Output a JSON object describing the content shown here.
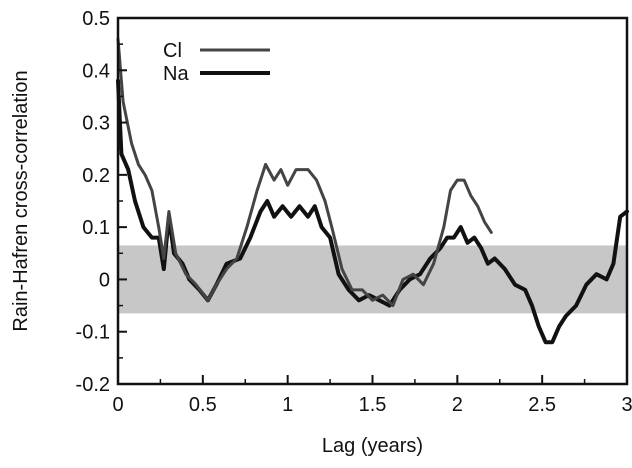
{
  "chart_data": {
    "type": "line",
    "title": "",
    "xlabel": "Lag (years)",
    "ylabel": "Rain-Hafren cross-correlation",
    "xlim": [
      0,
      3
    ],
    "ylim": [
      -0.2,
      0.5
    ],
    "x_ticks": [
      0,
      0.5,
      1,
      1.5,
      2,
      2.5,
      3
    ],
    "x_tick_labels": [
      "0",
      "0.5",
      "1",
      "1.5",
      "2",
      "2.5",
      "3"
    ],
    "y_ticks": [
      -0.2,
      -0.1,
      0,
      0.1,
      0.2,
      0.3,
      0.4,
      0.5
    ],
    "y_tick_labels": [
      "-0.2",
      "-0.1",
      "0",
      "0.1",
      "0.2",
      "0.3",
      "0.4",
      "0.5"
    ],
    "grid": false,
    "legend_position": "top-left",
    "confidence_band": {
      "lower": -0.065,
      "upper": 0.065,
      "color": "#bdbdbd"
    },
    "series": [
      {
        "name": "Cl",
        "color": "#444444",
        "points": [
          [
            0,
            0.46
          ],
          [
            0.03,
            0.34
          ],
          [
            0.08,
            0.26
          ],
          [
            0.12,
            0.22
          ],
          [
            0.16,
            0.2
          ],
          [
            0.2,
            0.17
          ],
          [
            0.24,
            0.1
          ],
          [
            0.27,
            0.04
          ],
          [
            0.3,
            0.13
          ],
          [
            0.34,
            0.05
          ],
          [
            0.4,
            0.01
          ],
          [
            0.46,
            -0.01
          ],
          [
            0.53,
            -0.04
          ],
          [
            0.58,
            -0.01
          ],
          [
            0.64,
            0.02
          ],
          [
            0.7,
            0.04
          ],
          [
            0.76,
            0.1
          ],
          [
            0.82,
            0.17
          ],
          [
            0.87,
            0.22
          ],
          [
            0.92,
            0.19
          ],
          [
            0.96,
            0.21
          ],
          [
            1.0,
            0.18
          ],
          [
            1.05,
            0.21
          ],
          [
            1.12,
            0.21
          ],
          [
            1.17,
            0.19
          ],
          [
            1.22,
            0.15
          ],
          [
            1.26,
            0.1
          ],
          [
            1.32,
            0.02
          ],
          [
            1.38,
            -0.02
          ],
          [
            1.44,
            -0.02
          ],
          [
            1.5,
            -0.04
          ],
          [
            1.56,
            -0.03
          ],
          [
            1.62,
            -0.05
          ],
          [
            1.68,
            0.0
          ],
          [
            1.74,
            0.01
          ],
          [
            1.8,
            -0.01
          ],
          [
            1.86,
            0.03
          ],
          [
            1.92,
            0.1
          ],
          [
            1.96,
            0.17
          ],
          [
            2.0,
            0.19
          ],
          [
            2.04,
            0.19
          ],
          [
            2.08,
            0.16
          ],
          [
            2.12,
            0.14
          ],
          [
            2.16,
            0.11
          ],
          [
            2.2,
            0.09
          ]
        ],
        "values_note": ""
      },
      {
        "name": "Na",
        "color": "#111111",
        "points": [
          [
            0,
            0.38
          ],
          [
            0.02,
            0.24
          ],
          [
            0.06,
            0.21
          ],
          [
            0.1,
            0.15
          ],
          [
            0.15,
            0.1
          ],
          [
            0.2,
            0.08
          ],
          [
            0.24,
            0.08
          ],
          [
            0.27,
            0.02
          ],
          [
            0.3,
            0.12
          ],
          [
            0.33,
            0.05
          ],
          [
            0.38,
            0.03
          ],
          [
            0.42,
            0.0
          ],
          [
            0.48,
            -0.02
          ],
          [
            0.53,
            -0.04
          ],
          [
            0.58,
            -0.01
          ],
          [
            0.64,
            0.03
          ],
          [
            0.72,
            0.04
          ],
          [
            0.78,
            0.08
          ],
          [
            0.84,
            0.13
          ],
          [
            0.88,
            0.15
          ],
          [
            0.92,
            0.12
          ],
          [
            0.97,
            0.14
          ],
          [
            1.02,
            0.12
          ],
          [
            1.07,
            0.14
          ],
          [
            1.12,
            0.12
          ],
          [
            1.16,
            0.14
          ],
          [
            1.2,
            0.1
          ],
          [
            1.25,
            0.08
          ],
          [
            1.3,
            0.01
          ],
          [
            1.36,
            -0.02
          ],
          [
            1.42,
            -0.04
          ],
          [
            1.48,
            -0.03
          ],
          [
            1.54,
            -0.04
          ],
          [
            1.6,
            -0.05
          ],
          [
            1.66,
            -0.02
          ],
          [
            1.72,
            0.0
          ],
          [
            1.78,
            0.01
          ],
          [
            1.84,
            0.04
          ],
          [
            1.9,
            0.06
          ],
          [
            1.94,
            0.08
          ],
          [
            1.98,
            0.08
          ],
          [
            2.02,
            0.1
          ],
          [
            2.06,
            0.07
          ],
          [
            2.1,
            0.08
          ],
          [
            2.14,
            0.06
          ],
          [
            2.18,
            0.03
          ],
          [
            2.22,
            0.04
          ],
          [
            2.28,
            0.02
          ],
          [
            2.34,
            -0.01
          ],
          [
            2.4,
            -0.02
          ],
          [
            2.44,
            -0.05
          ],
          [
            2.48,
            -0.09
          ],
          [
            2.52,
            -0.12
          ],
          [
            2.56,
            -0.12
          ],
          [
            2.6,
            -0.09
          ],
          [
            2.64,
            -0.07
          ],
          [
            2.7,
            -0.05
          ],
          [
            2.76,
            -0.01
          ],
          [
            2.82,
            0.01
          ],
          [
            2.88,
            0.0
          ],
          [
            2.92,
            0.03
          ],
          [
            2.96,
            0.12
          ],
          [
            3.0,
            0.13
          ]
        ]
      }
    ]
  }
}
